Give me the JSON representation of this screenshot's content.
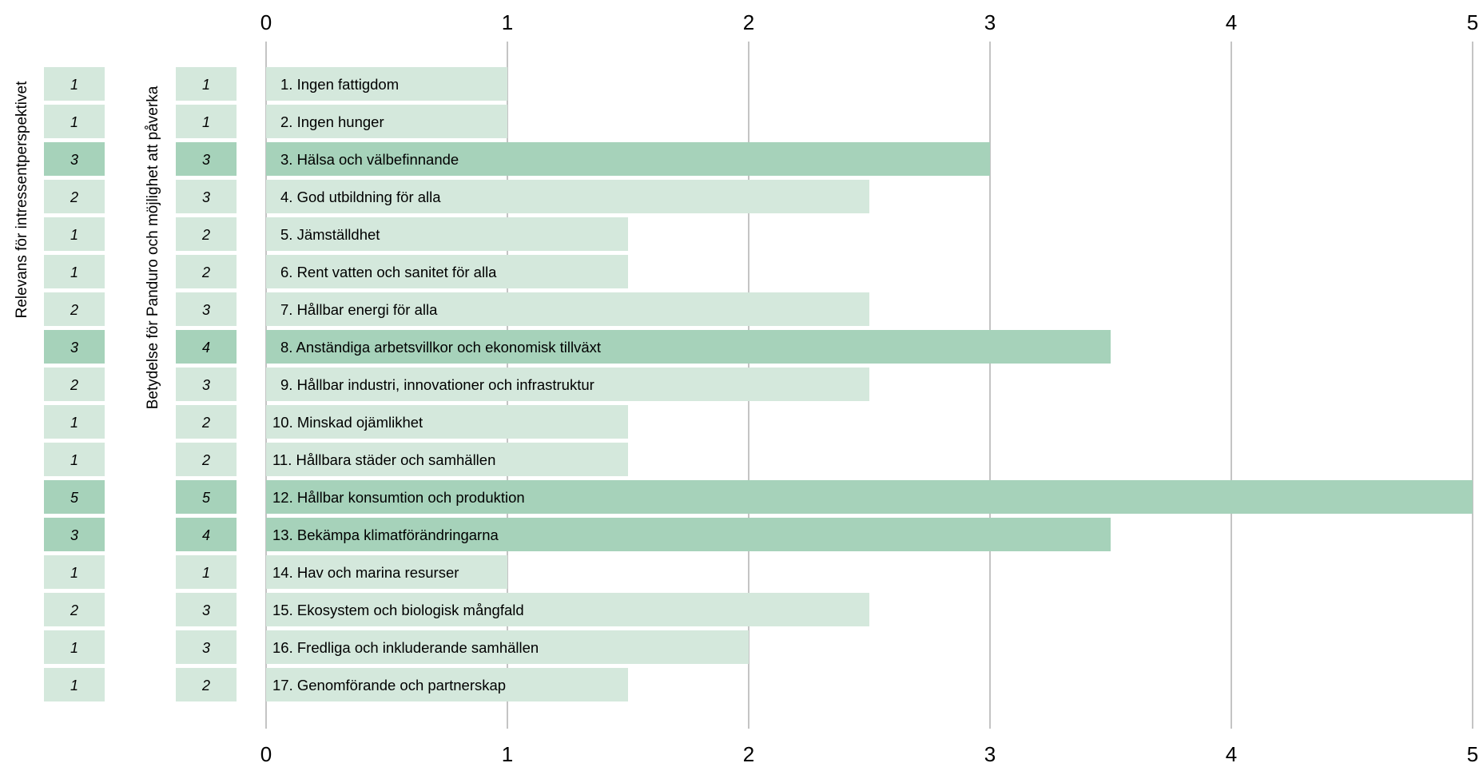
{
  "chart_data": {
    "type": "bar",
    "orientation": "horizontal",
    "title": "",
    "xlim": [
      0,
      5
    ],
    "x_ticks": [
      "0",
      "1",
      "2",
      "3",
      "4",
      "5"
    ],
    "grid": true,
    "side_columns": [
      {
        "name": "Relevans för intressentperspektivet",
        "label": "Relevans för intressentperspektivet"
      },
      {
        "name": "Betydelse för Panduro och möjlighet att påverka",
        "label": "Betydelse för Panduro och möjlighet att påverka"
      }
    ],
    "categories": [
      "1. Ingen fattigdom",
      "2. Ingen hunger",
      "3. Hälsa och välbefinnande",
      "4. God utbildning för alla",
      "5. Jämställdhet",
      "6. Rent vatten och sanitet för alla",
      "7. Hållbar energi för alla",
      "8. Anständiga arbetsvillkor och ekonomisk tillväxt",
      "9. Hållbar industri, innovationer och infrastruktur",
      "10. Minskad ojämlikhet",
      "11. Hållbara städer och samhällen",
      "12. Hållbar konsumtion och produktion",
      "13. Bekämpa klimatförändringarna",
      "14. Hav och marina resurser",
      "15. Ekosystem och biologisk mångfald",
      "16. Fredliga och inkluderande samhällen",
      "17. Genomförande och partnerskap"
    ],
    "values": [
      1,
      1,
      3,
      2.5,
      1.5,
      1.5,
      2.5,
      3.5,
      2.5,
      1.5,
      1.5,
      5,
      3.5,
      1,
      2.5,
      2,
      1.5
    ],
    "relevance": [
      "1",
      "1",
      "3",
      "2",
      "1",
      "1",
      "2",
      "3",
      "2",
      "1",
      "1",
      "5",
      "3",
      "1",
      "2",
      "1",
      "1"
    ],
    "importance": [
      "1",
      "1",
      "3",
      "3",
      "2",
      "2",
      "3",
      "4",
      "3",
      "2",
      "2",
      "5",
      "4",
      "1",
      "3",
      "3",
      "2"
    ],
    "highlighted": [
      false,
      false,
      true,
      false,
      false,
      false,
      false,
      true,
      false,
      false,
      false,
      true,
      true,
      false,
      false,
      false,
      false
    ],
    "colors": {
      "light": "#d4e8dc",
      "dark": "#a6d2ba",
      "grid": "#b0b0b0"
    }
  }
}
